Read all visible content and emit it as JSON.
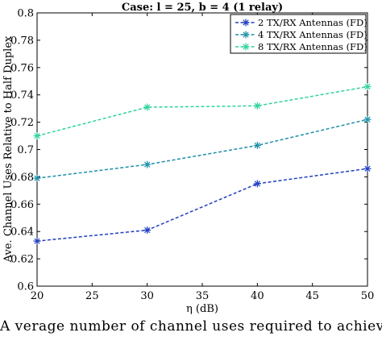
{
  "chart_data": {
    "type": "line",
    "title": "Case: l = 25, b = 4 (1 relay)",
    "xlabel": "η (dB)",
    "ylabel": "Ave. Channel Uses Relative to Half Duplex",
    "xlim": [
      20,
      50
    ],
    "ylim": [
      0.6,
      0.8
    ],
    "xticks": [
      "20",
      "25",
      "30",
      "35",
      "40",
      "45",
      "50"
    ],
    "yticks": [
      "0.6",
      "0.62",
      "0.64",
      "0.66",
      "0.68",
      "0.7",
      "0.72",
      "0.74",
      "0.76",
      "0.78",
      "0.8"
    ],
    "x": [
      20,
      30,
      40,
      50
    ],
    "grid": false,
    "legend_position": "top-right",
    "series": [
      {
        "name": "2 TX/RX Antennas (FD)",
        "values": [
          0.633,
          0.641,
          0.675,
          0.686
        ],
        "color": "#1f3fbf",
        "marker": "asterisk"
      },
      {
        "name": "4 TX/RX Antennas (FD)",
        "values": [
          0.679,
          0.689,
          0.703,
          0.722
        ],
        "color": "#1e90a8",
        "marker": "asterisk"
      },
      {
        "name": "8 TX/RX Antennas (FD)",
        "values": [
          0.71,
          0.731,
          0.732,
          0.746
        ],
        "color": "#2fd49a",
        "marker": "asterisk"
      }
    ]
  },
  "caption": "A verage number of channel uses required to achieve a hal"
}
